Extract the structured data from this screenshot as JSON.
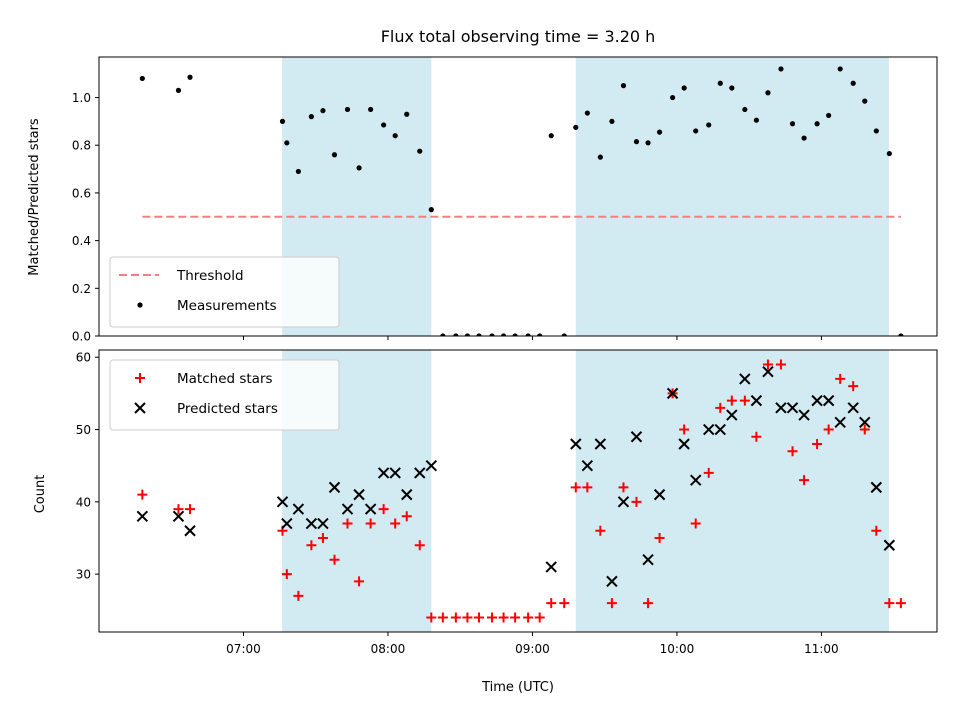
{
  "chart_data": [
    {
      "type": "scatter",
      "title": "Flux total observing time = 3.20 h",
      "xlabel": "",
      "ylabel": "Matched/Predicted stars",
      "ylim": [
        0,
        1.17
      ],
      "yticks": [
        0.0,
        0.2,
        0.4,
        0.6,
        0.8,
        1.0
      ],
      "xlim": [
        6.0,
        11.8
      ],
      "xticks": [
        7,
        8,
        9,
        10,
        11
      ],
      "shaded_regions": [
        [
          7.267,
          8.3
        ],
        [
          9.3,
          11.467
        ]
      ],
      "shade_color": "#add8e6",
      "legend": {
        "position": "lower-left",
        "entries": [
          {
            "label": "Threshold",
            "style": "dashed-line",
            "color": "#f08080"
          },
          {
            "label": "Measurements",
            "style": "dot",
            "color": "#000000"
          }
        ]
      },
      "threshold": {
        "name": "Threshold",
        "y": 0.5,
        "x_range": [
          6.3,
          11.55
        ],
        "color": "#f08080"
      },
      "series": [
        {
          "name": "Measurements",
          "color": "#000000",
          "points": [
            [
              6.3,
              1.08
            ],
            [
              6.55,
              1.03
            ],
            [
              6.63,
              1.085
            ],
            [
              7.27,
              0.9
            ],
            [
              7.3,
              0.81
            ],
            [
              7.38,
              0.69
            ],
            [
              7.47,
              0.92
            ],
            [
              7.55,
              0.945
            ],
            [
              7.63,
              0.76
            ],
            [
              7.72,
              0.95
            ],
            [
              7.8,
              0.705
            ],
            [
              7.88,
              0.95
            ],
            [
              7.97,
              0.885
            ],
            [
              8.05,
              0.84
            ],
            [
              8.13,
              0.93
            ],
            [
              8.22,
              0.775
            ],
            [
              8.3,
              0.53
            ],
            [
              8.38,
              0
            ],
            [
              8.47,
              0
            ],
            [
              8.55,
              0
            ],
            [
              8.63,
              0
            ],
            [
              8.72,
              0
            ],
            [
              8.8,
              0
            ],
            [
              8.88,
              0
            ],
            [
              8.97,
              0
            ],
            [
              9.05,
              0
            ],
            [
              9.13,
              0.84
            ],
            [
              9.22,
              0
            ],
            [
              9.3,
              0.875
            ],
            [
              9.38,
              0.935
            ],
            [
              9.47,
              0.75
            ],
            [
              9.55,
              0.9
            ],
            [
              9.63,
              1.05
            ],
            [
              9.72,
              0.815
            ],
            [
              9.8,
              0.81
            ],
            [
              9.88,
              0.855
            ],
            [
              9.97,
              1.0
            ],
            [
              10.05,
              1.04
            ],
            [
              10.13,
              0.86
            ],
            [
              10.22,
              0.885
            ],
            [
              10.3,
              1.06
            ],
            [
              10.38,
              1.04
            ],
            [
              10.47,
              0.95
            ],
            [
              10.55,
              0.905
            ],
            [
              10.63,
              1.02
            ],
            [
              10.72,
              1.12
            ],
            [
              10.8,
              0.89
            ],
            [
              10.88,
              0.83
            ],
            [
              10.97,
              0.89
            ],
            [
              11.05,
              0.925
            ],
            [
              11.13,
              1.12
            ],
            [
              11.22,
              1.06
            ],
            [
              11.3,
              0.985
            ],
            [
              11.38,
              0.86
            ],
            [
              11.47,
              0.765
            ],
            [
              11.55,
              0
            ]
          ]
        }
      ]
    },
    {
      "type": "scatter",
      "title": "",
      "xlabel": "Time (UTC)",
      "ylabel": "Count",
      "ylim": [
        22,
        61
      ],
      "yticks": [
        30,
        40,
        50,
        60
      ],
      "xlim": [
        6.0,
        11.8
      ],
      "xticks": [
        7,
        8,
        9,
        10,
        11
      ],
      "xticklabels": [
        "07:00",
        "08:00",
        "09:00",
        "10:00",
        "11:00"
      ],
      "shaded_regions": [
        [
          7.267,
          8.3
        ],
        [
          9.3,
          11.467
        ]
      ],
      "shade_color": "#add8e6",
      "legend": {
        "position": "upper-left",
        "entries": [
          {
            "label": "Matched stars",
            "style": "plus",
            "color": "#ff0000"
          },
          {
            "label": "Predicted stars",
            "style": "x",
            "color": "#000000"
          }
        ]
      },
      "series": [
        {
          "name": "Matched stars",
          "marker": "plus",
          "color": "#ff0000",
          "points": [
            [
              6.3,
              41
            ],
            [
              6.55,
              39
            ],
            [
              6.63,
              39
            ],
            [
              7.27,
              36
            ],
            [
              7.3,
              30
            ],
            [
              7.38,
              27
            ],
            [
              7.47,
              34
            ],
            [
              7.55,
              35
            ],
            [
              7.63,
              32
            ],
            [
              7.72,
              37
            ],
            [
              7.8,
              29
            ],
            [
              7.88,
              37
            ],
            [
              7.97,
              39
            ],
            [
              8.05,
              37
            ],
            [
              8.13,
              38
            ],
            [
              8.22,
              34
            ],
            [
              8.3,
              24
            ],
            [
              8.38,
              24
            ],
            [
              8.47,
              24
            ],
            [
              8.55,
              24
            ],
            [
              8.63,
              24
            ],
            [
              8.72,
              24
            ],
            [
              8.8,
              24
            ],
            [
              8.88,
              24
            ],
            [
              8.97,
              24
            ],
            [
              9.05,
              24
            ],
            [
              9.13,
              26
            ],
            [
              9.22,
              26
            ],
            [
              9.3,
              42
            ],
            [
              9.38,
              42
            ],
            [
              9.47,
              36
            ],
            [
              9.55,
              26
            ],
            [
              9.63,
              42
            ],
            [
              9.72,
              40
            ],
            [
              9.8,
              26
            ],
            [
              9.88,
              35
            ],
            [
              9.97,
              55
            ],
            [
              10.05,
              50
            ],
            [
              10.13,
              37
            ],
            [
              10.22,
              44
            ],
            [
              10.3,
              53
            ],
            [
              10.38,
              54
            ],
            [
              10.47,
              54
            ],
            [
              10.55,
              49
            ],
            [
              10.63,
              59
            ],
            [
              10.72,
              59
            ],
            [
              10.8,
              47
            ],
            [
              10.88,
              43
            ],
            [
              10.97,
              48
            ],
            [
              11.05,
              50
            ],
            [
              11.13,
              57
            ],
            [
              11.22,
              56
            ],
            [
              11.3,
              50
            ],
            [
              11.38,
              36
            ],
            [
              11.47,
              26
            ],
            [
              11.55,
              26
            ]
          ]
        },
        {
          "name": "Predicted stars",
          "marker": "x",
          "color": "#000000",
          "points": [
            [
              6.3,
              38
            ],
            [
              6.55,
              38
            ],
            [
              6.63,
              36
            ],
            [
              7.27,
              40
            ],
            [
              7.3,
              37
            ],
            [
              7.38,
              39
            ],
            [
              7.47,
              37
            ],
            [
              7.55,
              37
            ],
            [
              7.63,
              42
            ],
            [
              7.72,
              39
            ],
            [
              7.8,
              41
            ],
            [
              7.88,
              39
            ],
            [
              7.97,
              44
            ],
            [
              8.05,
              44
            ],
            [
              8.13,
              41
            ],
            [
              8.22,
              44
            ],
            [
              8.3,
              45
            ],
            [
              9.13,
              31
            ],
            [
              9.3,
              48
            ],
            [
              9.38,
              45
            ],
            [
              9.47,
              48
            ],
            [
              9.55,
              29
            ],
            [
              9.63,
              40
            ],
            [
              9.72,
              49
            ],
            [
              9.8,
              32
            ],
            [
              9.88,
              41
            ],
            [
              9.97,
              55
            ],
            [
              10.05,
              48
            ],
            [
              10.13,
              43
            ],
            [
              10.22,
              50
            ],
            [
              10.3,
              50
            ],
            [
              10.38,
              52
            ],
            [
              10.47,
              57
            ],
            [
              10.55,
              54
            ],
            [
              10.63,
              58
            ],
            [
              10.72,
              53
            ],
            [
              10.8,
              53
            ],
            [
              10.88,
              52
            ],
            [
              10.97,
              54
            ],
            [
              11.05,
              54
            ],
            [
              11.13,
              51
            ],
            [
              11.22,
              53
            ],
            [
              11.3,
              51
            ],
            [
              11.38,
              42
            ],
            [
              11.47,
              34
            ]
          ]
        }
      ]
    }
  ]
}
